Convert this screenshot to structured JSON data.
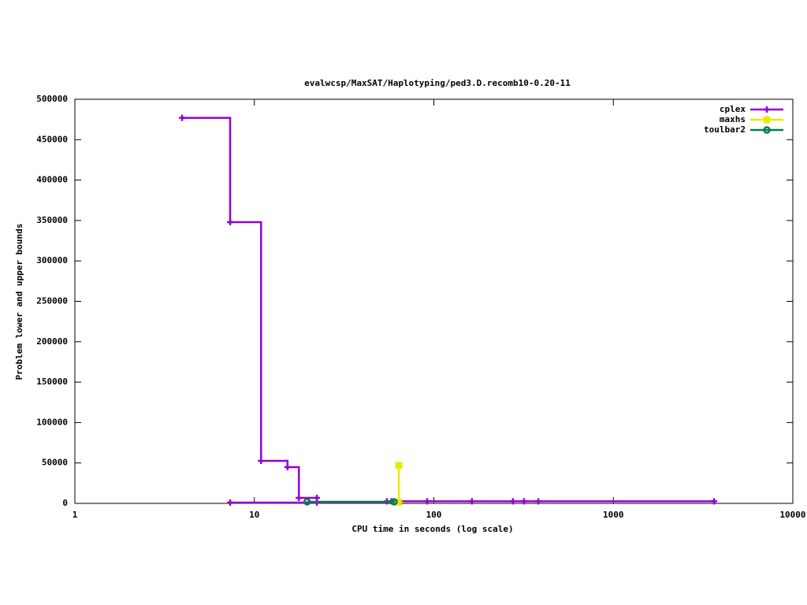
{
  "chart_data": {
    "type": "line",
    "style": "steps",
    "title": "evalwcsp/MaxSAT/Haplotyping/ped3.D.recomb10-0.20-11",
    "x_label": "CPU time in seconds (log scale)",
    "y_label": "Problem lower and upper bounds",
    "xlog": true,
    "xlim": [
      1,
      10000
    ],
    "xticks": [
      1,
      10,
      100,
      1000,
      10000
    ],
    "ylim": [
      0,
      500000
    ],
    "yticks": [
      0,
      50000,
      100000,
      150000,
      200000,
      250000,
      300000,
      350000,
      400000,
      450000,
      500000
    ],
    "legend": "top-right",
    "series": [
      {
        "name": "cplex",
        "color": "#9400d3",
        "marker": "plus",
        "x": [
          3.96,
          7.33,
          10.9,
          15.3,
          17.7,
          22.3,
          null,
          7.33,
          22.3,
          54.8,
          58,
          91.8,
          163,
          276,
          318,
          382,
          3640
        ],
        "values": [
          477000,
          348000,
          52600,
          44800,
          6800,
          6800,
          null,
          1000,
          1000,
          2500,
          2500,
          2500,
          2500,
          2500,
          2500,
          2500,
          2500
        ]
      },
      {
        "name": "maxhs",
        "color": "#e8e800",
        "marker": "star",
        "x": [
          63.8,
          63.8
        ],
        "values": [
          47000,
          1500
        ]
      },
      {
        "name": "toulbar2",
        "color": "#00804a",
        "marker": "circle",
        "x": [
          19.7,
          60
        ],
        "values": [
          2000,
          2000
        ]
      }
    ]
  }
}
